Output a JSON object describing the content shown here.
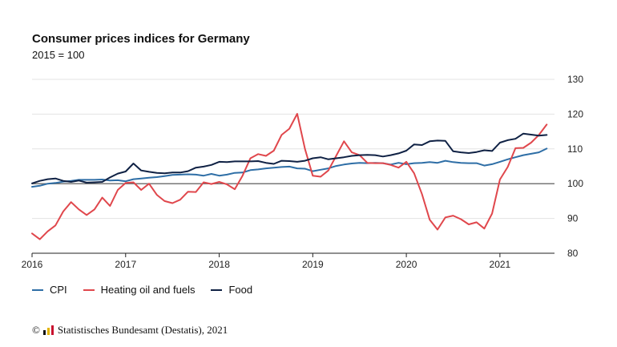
{
  "chart_data": {
    "type": "line",
    "title": "Consumer prices indices for Germany",
    "subtitle": "2015 = 100",
    "x_unit": "months since Jan 2016",
    "x_ticks": [
      {
        "label": "2016",
        "value": 0
      },
      {
        "label": "2017",
        "value": 12
      },
      {
        "label": "2018",
        "value": 24
      },
      {
        "label": "2019",
        "value": 36
      },
      {
        "label": "2020",
        "value": 48
      },
      {
        "label": "2021",
        "value": 60
      }
    ],
    "xlim": [
      0,
      67
    ],
    "ylim": [
      80,
      130
    ],
    "y_ticks": [
      80,
      90,
      100,
      110,
      120,
      130
    ],
    "reference_line": 100,
    "grid": true,
    "legend_position": "bottom-left",
    "series": [
      {
        "name": "CPI",
        "color": "#2e6ea6",
        "values": [
          99.1,
          99.4,
          100.0,
          100.2,
          100.6,
          100.8,
          101.1,
          101.1,
          101.1,
          101.2,
          100.9,
          101.0,
          100.7,
          101.3,
          101.5,
          101.7,
          101.9,
          102.2,
          102.5,
          102.6,
          102.7,
          102.6,
          102.3,
          102.8,
          102.3,
          102.6,
          103.1,
          103.2,
          103.9,
          104.1,
          104.4,
          104.6,
          104.8,
          104.9,
          104.4,
          104.3,
          103.6,
          104.0,
          104.4,
          105.1,
          105.5,
          105.8,
          106.0,
          105.9,
          106.0,
          105.9,
          105.5,
          106.0,
          105.6,
          105.9,
          106.0,
          106.2,
          106.0,
          106.6,
          106.2,
          106.0,
          105.9,
          105.9,
          105.2,
          105.6,
          106.3,
          107.0,
          107.6,
          108.2,
          108.6,
          109.0,
          110.1
        ]
      },
      {
        "name": "Heating oil and fuels",
        "color": "#e0474c",
        "values": [
          85.7,
          84.0,
          86.3,
          88.0,
          92.0,
          94.7,
          92.6,
          91.0,
          92.6,
          96.0,
          93.6,
          98.2,
          100.2,
          100.4,
          98.2,
          100.0,
          96.8,
          95.0,
          94.4,
          95.4,
          97.7,
          97.6,
          100.4,
          99.9,
          100.5,
          99.8,
          98.4,
          102.3,
          107.3,
          108.5,
          108.0,
          109.5,
          114.0,
          115.8,
          120.1,
          110.0,
          102.3,
          102.0,
          103.8,
          108.0,
          112.2,
          109.0,
          108.2,
          106.0,
          105.9,
          105.9,
          105.4,
          104.6,
          106.3,
          103.0,
          97.0,
          89.6,
          86.8,
          90.3,
          90.8,
          89.8,
          88.3,
          88.9,
          87.1,
          91.4,
          101.2,
          104.8,
          110.2,
          110.3,
          111.8,
          114.0,
          117.0
        ]
      },
      {
        "name": "Food",
        "color": "#0f2144",
        "values": [
          100.1,
          100.8,
          101.3,
          101.5,
          100.8,
          100.5,
          100.9,
          100.3,
          100.4,
          100.5,
          101.8,
          102.9,
          103.5,
          105.8,
          103.8,
          103.4,
          103.1,
          103.0,
          103.2,
          103.2,
          103.6,
          104.6,
          104.9,
          105.4,
          106.3,
          106.2,
          106.4,
          106.4,
          106.4,
          106.5,
          106.0,
          105.7,
          106.6,
          106.5,
          106.3,
          106.6,
          107.3,
          107.6,
          107.0,
          107.3,
          107.6,
          108.0,
          108.2,
          108.3,
          108.2,
          107.8,
          108.2,
          108.7,
          109.5,
          111.3,
          111.1,
          112.2,
          112.4,
          112.3,
          109.3,
          109.0,
          108.8,
          109.1,
          109.6,
          109.4,
          111.8,
          112.5,
          112.9,
          114.4,
          114.1,
          113.8,
          114.0
        ]
      }
    ]
  },
  "legend": [
    "CPI",
    "Heating oil and fuels",
    "Food"
  ],
  "source": "Statistisches Bundesamt (Destatis), 2021",
  "copyright_symbol": "©"
}
